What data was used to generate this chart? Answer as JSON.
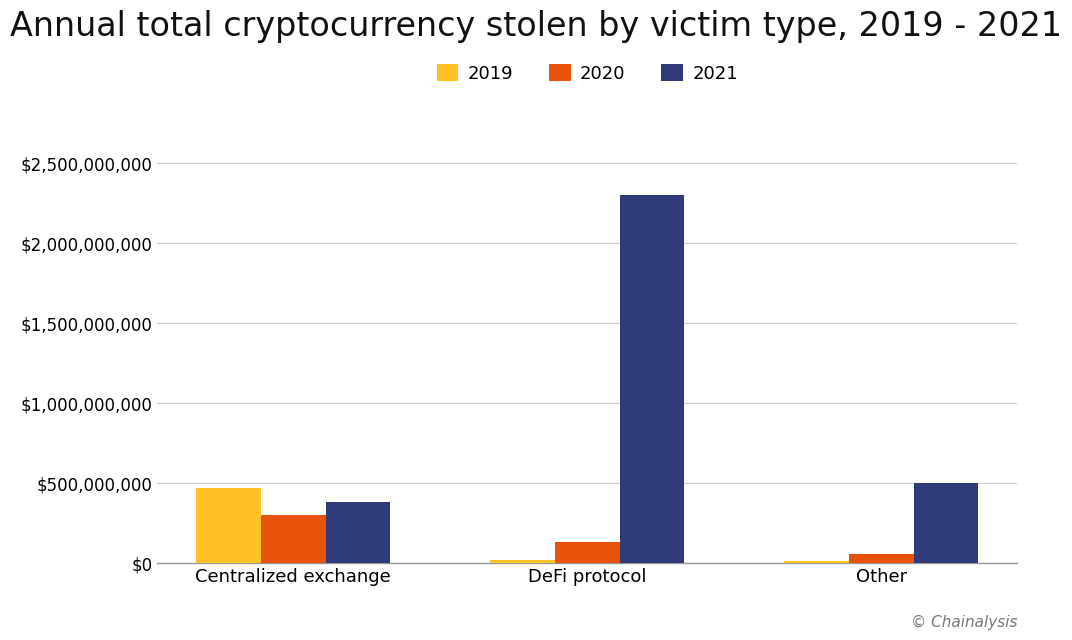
{
  "title": "Annual total cryptocurrency stolen by victim type, 2019 - 2021",
  "categories": [
    "Centralized exchange",
    "DeFi protocol",
    "Other"
  ],
  "years": [
    "2019",
    "2020",
    "2021"
  ],
  "values": {
    "2019": [
      470000000,
      20000000,
      15000000
    ],
    "2020": [
      300000000,
      130000000,
      60000000
    ],
    "2021": [
      380000000,
      2300000000,
      500000000
    ]
  },
  "colors": {
    "2019": "#FFC125",
    "2020": "#E8520A",
    "2021": "#2E3A7A"
  },
  "ylim": [
    0,
    2750000000
  ],
  "yticks": [
    0,
    500000000,
    1000000000,
    1500000000,
    2000000000,
    2500000000
  ],
  "background_color": "#ffffff",
  "grid_color": "#cccccc",
  "title_fontsize": 24,
  "legend_fontsize": 13,
  "tick_fontsize": 12,
  "xlabel_fontsize": 13,
  "watermark": "© Chainalysis"
}
